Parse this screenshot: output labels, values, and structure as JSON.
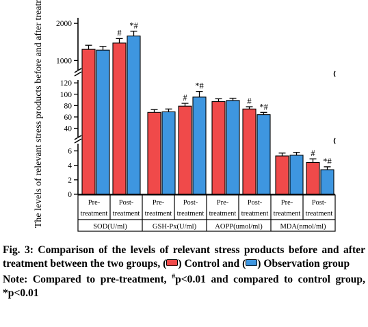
{
  "chart_data": {
    "type": "bar",
    "ylabel": "The levels of relevant stress products before and after treatment",
    "y_axis": "broken",
    "y_segments": [
      {
        "range": [
          0,
          7
        ],
        "ticks": [
          0,
          2,
          4,
          6
        ]
      },
      {
        "range": [
          25,
          125
        ],
        "ticks": [
          40,
          60,
          80,
          100,
          120
        ]
      },
      {
        "range": [
          750,
          2150
        ],
        "ticks": [
          1000,
          2000
        ]
      }
    ],
    "groups": [
      "SOD(U/ml)",
      "GSH-Px(U/ml)",
      "AOPP(umol/ml)",
      "MDA(nmol/ml)"
    ],
    "timepoints": [
      "Pre-treatment",
      "Post-treatment"
    ],
    "series": [
      {
        "name": "Control",
        "color": "#f04a4a",
        "values": [
          [
            1300,
            1470
          ],
          [
            68,
            79
          ],
          [
            87,
            74
          ],
          [
            5.3,
            4.4
          ]
        ],
        "errors": [
          [
            110,
            120
          ],
          [
            5,
            5
          ],
          [
            5,
            4
          ],
          [
            0.4,
            0.5
          ]
        ]
      },
      {
        "name": "Observation group",
        "color": "#3e96e0",
        "values": [
          [
            1280,
            1660
          ],
          [
            69,
            95
          ],
          [
            89,
            64
          ],
          [
            5.4,
            3.4
          ]
        ],
        "errors": [
          [
            100,
            130
          ],
          [
            5,
            10
          ],
          [
            4,
            4
          ],
          [
            0.4,
            0.4
          ]
        ]
      }
    ],
    "annotations": [
      [
        "",
        "#"
      ],
      [
        "",
        "#"
      ],
      [
        "",
        "#"
      ],
      [
        "",
        "#"
      ]
    ],
    "annotations_observation": [
      [
        "",
        "*#"
      ],
      [
        "",
        "*#"
      ],
      [
        "",
        "*#"
      ],
      [
        "",
        "*#"
      ]
    ],
    "tick_rows": [
      [
        "Pre-",
        "treatment"
      ],
      [
        "Post-",
        "treatment"
      ]
    ],
    "grid": false,
    "legend": "in caption"
  },
  "caption": {
    "fig_label": "Fig. 3:",
    "title_main": "Comparison of the levels of relevant stress products before and after treatment between the two groups, (",
    "control_label": ") Control and (",
    "observation_label": ") Observation group",
    "note_start": "Note: Compared to pre-treatment, ",
    "hash": "#",
    "note_mid": "p<0.01 and compared to control group, *p<0.01",
    "control_color": "#f04a4a",
    "observation_color": "#3e96e0"
  }
}
